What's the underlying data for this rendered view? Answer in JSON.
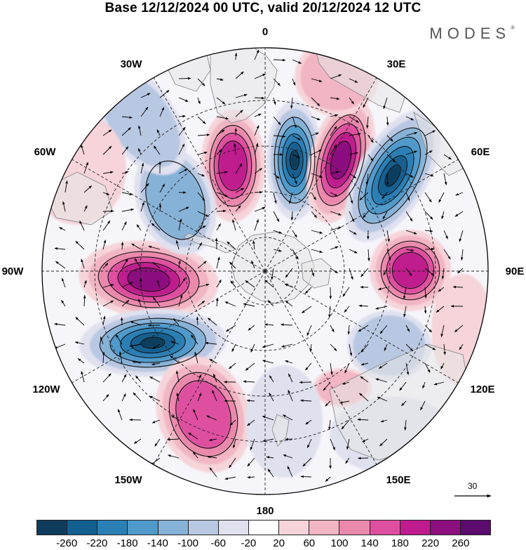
{
  "title": "Base 12/12/2024 00 UTC, valid 20/12/2024 12 UTC",
  "brand": "MODES",
  "brand_mark": "®",
  "longitude_labels": {
    "lon_0": "0",
    "lon_30e": "30E",
    "lon_60e": "60E",
    "lon_90e": "90E",
    "lon_120e": "120E",
    "lon_150e": "150E",
    "lon_180": "180",
    "lon_150w": "150W",
    "lon_120w": "120W",
    "lon_90w": "90W",
    "lon_60w": "60W",
    "lon_30w": "30W"
  },
  "reference_vector": {
    "label": "30"
  },
  "colorbar": {
    "ticks": [
      "-260",
      "-220",
      "-180",
      "-140",
      "-100",
      "-60",
      "-20",
      "20",
      "60",
      "100",
      "140",
      "180",
      "220",
      "260"
    ],
    "colors": [
      "#0f3c5c",
      "#135f90",
      "#2a7fb5",
      "#4f9acb",
      "#86b2d8",
      "#b9c8e2",
      "#dfe1ef",
      "#ffffff",
      "#f6d4d9",
      "#f2b5c3",
      "#eb89ad",
      "#df4fa0",
      "#bf1b8e",
      "#8c0e7f",
      "#5c0a6e"
    ]
  },
  "map_colors": {
    "land": "#e6e6e6",
    "land_edge": "#8c8c8c",
    "grid": "#222222"
  }
}
